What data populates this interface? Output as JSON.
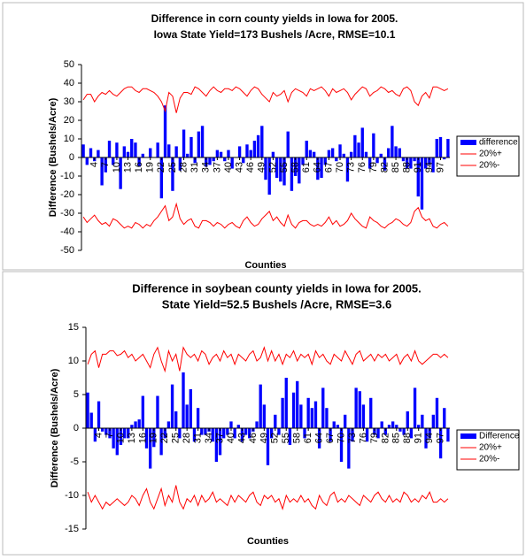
{
  "chart_data": [
    {
      "type": "bar",
      "title": "Difference in corn county yields in Iowa for 2005.",
      "subtitle": "Iowa State Yield=173 Bushels /Acre, RMSE=10.1",
      "x_label": "Counties",
      "y_label": "Difference (Bushels/Acre)",
      "ylim": [
        -50,
        50
      ],
      "yticks": [
        -50,
        -40,
        -30,
        -20,
        -10,
        0,
        10,
        20,
        30,
        40,
        50
      ],
      "grid": false,
      "legend": "right",
      "categories": [
        null,
        null,
        null,
        "4",
        null,
        null,
        "7",
        null,
        null,
        "10",
        null,
        null,
        "13",
        null,
        null,
        "16",
        null,
        null,
        "19",
        null,
        null,
        "22",
        null,
        null,
        "25",
        null,
        null,
        "28",
        null,
        null,
        "31",
        null,
        null,
        "34",
        null,
        null,
        "37",
        null,
        null,
        "40",
        null,
        null,
        "43",
        null,
        null,
        "46",
        null,
        null,
        "49",
        null,
        null,
        "52",
        null,
        null,
        "55",
        null,
        null,
        "58",
        null,
        null,
        "61",
        null,
        null,
        "64",
        null,
        null,
        "67",
        null,
        null,
        "70",
        null,
        null,
        "73",
        null,
        null,
        "76",
        null,
        null,
        "79",
        null,
        null,
        "82",
        null,
        null,
        "85",
        null,
        null,
        "88",
        null,
        null,
        "91",
        null,
        null,
        "94",
        null,
        null,
        "97",
        null,
        null
      ],
      "series": [
        {
          "name": "difference",
          "type": "bar",
          "color": "#0000ff",
          "values": [
            7,
            -4,
            5,
            -2,
            4,
            -15,
            -8,
            9,
            -4,
            8,
            -17,
            6,
            3,
            10,
            8,
            -5,
            2,
            0,
            5,
            0,
            8,
            -22,
            28,
            7,
            -18,
            6,
            -7,
            15,
            2,
            11,
            -3,
            14,
            17,
            -5,
            -4,
            -2,
            4,
            3,
            -2,
            4,
            -6,
            0,
            6,
            -3,
            7,
            4,
            9,
            12,
            17,
            -12,
            -20,
            3,
            -11,
            -13,
            -15,
            14,
            -18,
            -10,
            -14,
            -4,
            9,
            4,
            3,
            -12,
            -11,
            -4,
            4,
            5,
            -2,
            7,
            2,
            -13,
            3,
            12,
            8,
            16,
            3,
            -6,
            13,
            -3,
            2,
            -7,
            5,
            17,
            6,
            5,
            -2,
            -6,
            -6,
            -2,
            -21,
            -28,
            -6,
            -4,
            -8,
            10,
            11,
            -1,
            10
          ]
        },
        {
          "name": "20%+",
          "type": "line",
          "color": "#ff0000",
          "values": [
            31,
            34,
            34,
            30,
            33,
            35,
            34,
            36,
            34,
            33,
            35,
            37,
            38,
            38,
            36,
            35,
            37,
            37,
            36,
            35,
            33,
            30,
            25,
            35,
            33,
            24,
            32,
            35,
            35,
            34,
            38,
            37,
            35,
            33,
            36,
            38,
            36,
            35,
            37,
            37,
            36,
            38,
            37,
            35,
            33,
            36,
            38,
            37,
            34,
            32,
            30,
            35,
            33,
            34,
            36,
            30,
            35,
            37,
            36,
            35,
            33,
            37,
            36,
            37,
            38,
            36,
            33,
            37,
            35,
            36,
            37,
            35,
            31,
            34,
            36,
            38,
            37,
            33,
            35,
            36,
            38,
            37,
            35,
            36,
            34,
            33,
            37,
            38,
            36,
            30,
            28,
            33,
            35,
            32,
            38,
            38,
            37,
            36,
            37
          ]
        },
        {
          "name": "20%-",
          "type": "line",
          "color": "#ff0000",
          "values": [
            -32,
            -35,
            -33,
            -31,
            -34,
            -36,
            -35,
            -37,
            -33,
            -34,
            -36,
            -38,
            -37,
            -38,
            -35,
            -36,
            -38,
            -36,
            -37,
            -34,
            -32,
            -29,
            -26,
            -34,
            -32,
            -25,
            -33,
            -36,
            -34,
            -33,
            -37,
            -38,
            -34,
            -34,
            -35,
            -37,
            -35,
            -36,
            -38,
            -36,
            -35,
            -37,
            -38,
            -34,
            -32,
            -35,
            -37,
            -36,
            -33,
            -31,
            -29,
            -34,
            -32,
            -35,
            -37,
            -31,
            -36,
            -38,
            -35,
            -34,
            -34,
            -36,
            -37,
            -36,
            -37,
            -35,
            -32,
            -36,
            -34,
            -37,
            -36,
            -34,
            -30,
            -33,
            -35,
            -37,
            -38,
            -32,
            -34,
            -35,
            -37,
            -38,
            -36,
            -35,
            -33,
            -34,
            -36,
            -37,
            -35,
            -29,
            -27,
            -32,
            -34,
            -33,
            -37,
            -38,
            -36,
            -35,
            -37
          ]
        }
      ]
    },
    {
      "type": "bar",
      "title": "Difference in soybean county yields in Iowa for 2005.",
      "subtitle": "State Yield=52.5 Bushels /Acre, RMSE=3.6",
      "x_label": "Counties",
      "y_label": "Difference (Bushels/Acre)",
      "ylim": [
        -15,
        15
      ],
      "yticks": [
        -15,
        -10,
        -5,
        0,
        5,
        10,
        15
      ],
      "grid": false,
      "legend": "right",
      "categories": [
        null,
        null,
        null,
        "4",
        null,
        null,
        "7",
        null,
        null,
        "10",
        null,
        null,
        "13",
        null,
        null,
        "16",
        null,
        null,
        "19",
        null,
        null,
        "22",
        null,
        null,
        "25",
        null,
        null,
        "28",
        null,
        null,
        "31",
        null,
        null,
        "34",
        null,
        null,
        "37",
        null,
        null,
        "40",
        null,
        null,
        "43",
        null,
        null,
        "46",
        null,
        null,
        "49",
        null,
        null,
        "52",
        null,
        null,
        "55",
        null,
        null,
        "58",
        null,
        null,
        "61",
        null,
        null,
        "64",
        null,
        null,
        "67",
        null,
        null,
        "70",
        null,
        null,
        "73",
        null,
        null,
        "76",
        null,
        null,
        "79",
        null,
        null,
        "82",
        null,
        null,
        "85",
        null,
        null,
        "88",
        null,
        null,
        "91",
        null,
        null,
        "94",
        null,
        null,
        "97",
        null,
        null
      ],
      "series": [
        {
          "name": "Difference",
          "type": "bar",
          "color": "#0000ff",
          "values": [
            5.3,
            2.3,
            -2,
            4,
            -0.5,
            -1,
            -1.5,
            -3,
            -4,
            -2.5,
            -1.5,
            -1.5,
            0.5,
            1,
            1.3,
            4.8,
            -3,
            -6,
            -2.8,
            4.8,
            -4,
            -1.5,
            1,
            6.5,
            2.5,
            -1.5,
            8.3,
            3.5,
            5.8,
            -2,
            3,
            -1,
            -1,
            -0.5,
            -2,
            -5,
            -4,
            -1.5,
            -1,
            1,
            -1.5,
            0.5,
            -2,
            -1,
            -1.5,
            -0.5,
            1,
            6.5,
            3.5,
            -5.5,
            -1.5,
            2,
            -1,
            4.5,
            7.5,
            -2.5,
            5.3,
            7,
            3.5,
            -1.5,
            4.5,
            3,
            4,
            -3,
            6,
            3,
            -2,
            1,
            0.5,
            -5,
            2,
            -6,
            -2,
            6,
            5.5,
            3.5,
            -2,
            4.5,
            -1,
            -1.5,
            1,
            -1,
            0.5,
            1,
            0.5,
            -0.5,
            -1,
            2.5,
            -1.5,
            6,
            0.5,
            2,
            -3,
            -1.5,
            2,
            4.5,
            -4.5,
            3,
            -2
          ]
        },
        {
          "name": "20%+",
          "type": "line",
          "color": "#ff0000",
          "values": [
            9.5,
            11,
            11.5,
            9,
            11,
            11,
            11.5,
            11.5,
            10.8,
            11,
            11.5,
            10.5,
            11,
            10,
            10.5,
            11,
            10,
            9,
            11,
            12,
            10,
            8.5,
            11.5,
            10,
            11,
            8.5,
            12,
            11,
            10.5,
            11,
            10,
            11.5,
            11,
            9.5,
            10.5,
            11,
            10,
            11.5,
            10.5,
            11,
            9.5,
            11,
            10.5,
            10,
            11,
            11.5,
            10,
            10.5,
            12,
            10,
            11.5,
            10,
            11,
            9.5,
            11,
            10.5,
            11.5,
            10,
            11,
            10.5,
            11,
            9.5,
            11.5,
            10.5,
            11,
            10,
            9.5,
            11,
            10.5,
            10,
            11.5,
            10.5,
            9.5,
            11,
            11.5,
            10,
            10.5,
            11,
            10,
            11,
            10.5,
            11,
            10,
            10.5,
            11,
            9.5,
            10.5,
            11,
            10,
            11.5,
            10,
            9.5,
            10,
            10.5,
            11,
            11,
            10.5,
            11,
            10.5
          ]
        },
        {
          "name": "20%-",
          "type": "line",
          "color": "#ff0000",
          "values": [
            -9.5,
            -11,
            -10,
            -11,
            -12,
            -11,
            -11.5,
            -11,
            -10.5,
            -11,
            -11.5,
            -11,
            -10,
            -10.5,
            -11.5,
            -10,
            -9,
            -11,
            -12,
            -10.5,
            -9,
            -11.5,
            -10,
            -11,
            -8.5,
            -11,
            -12,
            -10.5,
            -11,
            -10,
            -11.5,
            -10,
            -11,
            -10.5,
            -9.5,
            -11,
            -10.5,
            -11,
            -11.5,
            -10,
            -11,
            -10,
            -10.5,
            -11,
            -10,
            -9.5,
            -11,
            -11.5,
            -10,
            -10.5,
            -10,
            -11,
            -10.5,
            -12,
            -10,
            -11,
            -10.5,
            -11,
            -10,
            -11,
            -10.5,
            -11.5,
            -12,
            -10,
            -11,
            -11.5,
            -10,
            -9.5,
            -11,
            -10.5,
            -11,
            -10,
            -10.5,
            -11,
            -11.5,
            -10,
            -10.5,
            -11,
            -10,
            -9.5,
            -10.5,
            -11,
            -10,
            -11,
            -10.5,
            -11,
            -9.5,
            -10,
            -11,
            -10.5,
            -11,
            -10,
            -10.5,
            -9.5,
            -11,
            -11,
            -10.5,
            -11,
            -10.5
          ]
        }
      ]
    }
  ]
}
